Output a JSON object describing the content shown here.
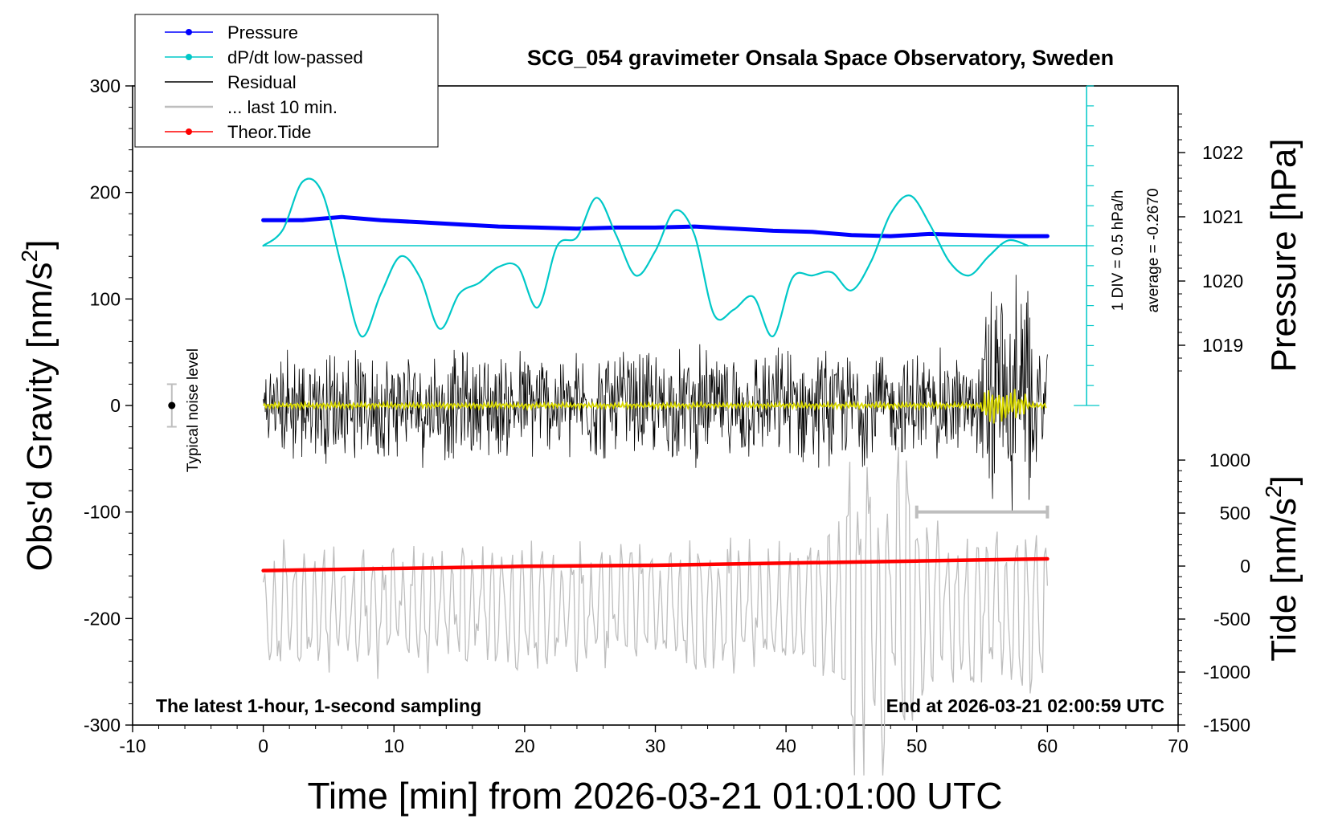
{
  "chart_data": {
    "type": "line",
    "title": "SCG_054 gravimeter Onsala Space Observatory, Sweden",
    "xlabel": "Time [min] from 2026-03-21 01:01:00 UTC",
    "xlim": [
      -10,
      70
    ],
    "x_ticks": [
      -10,
      0,
      10,
      20,
      30,
      40,
      50,
      60,
      70
    ],
    "ylabel_left": "Obs'd Gravity [nm/s",
    "ylabel_left_sup": "2",
    "ylabel_left_close": "]",
    "ylim_left": [
      -300,
      300
    ],
    "y_ticks_left": [
      300,
      200,
      100,
      0,
      -100,
      -200,
      -300
    ],
    "ylabel_right_top": "Pressure [hPa]",
    "pressure_ticks": [
      1022,
      1021,
      1020,
      1019
    ],
    "ylabel_right_bottom": "Tide [nm/s",
    "ylabel_right_bottom_sup": "2",
    "ylabel_right_bottom_close": "]",
    "tide_ticks": [
      1000,
      500,
      0,
      -500,
      -1000,
      -1500
    ],
    "legend": [
      {
        "name": "Pressure",
        "color": "#0000ff",
        "marker": true
      },
      {
        "name": "dP/dt low-passed",
        "color": "#00c8c8",
        "marker": true
      },
      {
        "name": "Residual",
        "color": "#000000",
        "marker": false
      },
      {
        "name": "... last 10 min.",
        "color": "#bebebe",
        "marker": false
      },
      {
        "name": "Theor.Tide",
        "color": "#ff0000",
        "marker": true
      }
    ],
    "legend_position": "top-left",
    "annotations": {
      "bottom_left": "The latest 1-hour, 1-second sampling",
      "bottom_right": "End at 2026-03-21 02:00:59 UTC",
      "noise_label": "Typical noise level",
      "div_label": "1 DIV = 0.5 hPa/h",
      "avg_label": "average = -0.2670"
    },
    "series": [
      {
        "name": "Pressure",
        "color": "#0000ff",
        "x": [
          0,
          3,
          6,
          9,
          12,
          15,
          18,
          21,
          24,
          27,
          30,
          33,
          36,
          39,
          42,
          45,
          48,
          51,
          54,
          57,
          60
        ],
        "values": [
          174,
          174,
          177,
          174,
          172,
          170,
          168,
          167,
          166,
          167,
          167,
          168,
          166,
          164,
          163,
          160,
          159,
          161,
          160,
          159,
          159
        ]
      },
      {
        "name": "dP/dt low-passed",
        "color": "#00c8c8",
        "x": [
          0,
          1.5,
          3,
          4.5,
          6,
          7.5,
          9,
          10.5,
          12,
          13.5,
          15,
          16.5,
          18,
          19.5,
          21,
          22.5,
          24,
          25.5,
          27,
          28.5,
          30,
          31.5,
          33,
          34.5,
          36,
          37.5,
          39,
          40.5,
          42,
          43.5,
          45,
          46.5,
          48,
          49.5,
          51,
          52.5,
          54,
          55.5,
          57,
          58.5
        ],
        "values": [
          150,
          165,
          210,
          200,
          130,
          65,
          105,
          140,
          120,
          72,
          105,
          115,
          130,
          130,
          92,
          150,
          158,
          195,
          160,
          122,
          145,
          183,
          160,
          85,
          90,
          102,
          65,
          120,
          122,
          125,
          108,
          135,
          180,
          197,
          170,
          135,
          122,
          140,
          155,
          150
        ]
      },
      {
        "name": "Theor.Tide",
        "color": "#ff0000",
        "x": [
          0,
          10,
          20,
          30,
          40,
          50,
          60
        ],
        "values": [
          -155,
          -153,
          -151,
          -150,
          -148,
          -146,
          -144
        ]
      }
    ],
    "dpdt_average_line": 150,
    "noise_level_range": [
      -20,
      20
    ],
    "last_10_min_range": [
      50,
      60
    ]
  }
}
